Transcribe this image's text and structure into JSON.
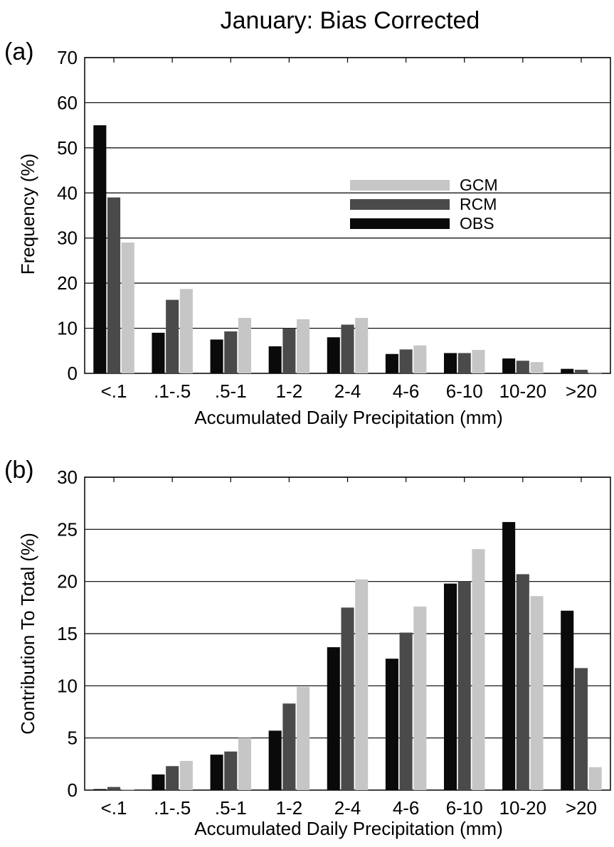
{
  "figure": {
    "title": "January: Bias Corrected"
  },
  "colors": {
    "OBS": "#0a0a0a",
    "RCM": "#4a4a4a",
    "GCM": "#c6c6c6",
    "axis": "#000000"
  },
  "chart_data": [
    {
      "type": "bar",
      "panel_label": "(a)",
      "title": "",
      "xlabel": "Accumulated Daily Precipitation (mm)",
      "ylabel": "Frequency (%)",
      "ylim": [
        0,
        70
      ],
      "yticks": [
        0,
        10,
        20,
        30,
        40,
        50,
        60,
        70
      ],
      "grid": "horizontal",
      "legend": {
        "placement": "upper-right",
        "entries": [
          "GCM",
          "RCM",
          "OBS"
        ]
      },
      "categories": [
        "<.1",
        ".1-.5",
        ".5-1",
        "1-2",
        "2-4",
        "4-6",
        "6-10",
        "10-20",
        ">20"
      ],
      "series": [
        {
          "name": "OBS",
          "values": [
            55,
            9,
            7.5,
            6,
            8,
            4.3,
            4.5,
            3.3,
            1
          ]
        },
        {
          "name": "RCM",
          "values": [
            39,
            16.3,
            9.3,
            10,
            10.8,
            5.3,
            4.5,
            2.8,
            0.8
          ]
        },
        {
          "name": "GCM",
          "values": [
            29,
            18.7,
            12.3,
            12,
            12.3,
            6.2,
            5.2,
            2.5,
            0.3
          ]
        }
      ]
    },
    {
      "type": "bar",
      "panel_label": "(b)",
      "title": "",
      "xlabel": "Accumulated Daily Precipitation (mm)",
      "ylabel": "Contribution To Total (%)",
      "ylim": [
        0,
        30
      ],
      "yticks": [
        0,
        5,
        10,
        15,
        20,
        25,
        30
      ],
      "grid": "horizontal",
      "legend": null,
      "categories": [
        "<.1",
        ".1-.5",
        ".5-1",
        "1-2",
        "2-4",
        "4-6",
        "6-10",
        "10-20",
        ">20"
      ],
      "series": [
        {
          "name": "OBS",
          "values": [
            0.1,
            1.5,
            3.4,
            5.7,
            13.7,
            12.6,
            19.8,
            25.7,
            17.2
          ]
        },
        {
          "name": "RCM",
          "values": [
            0.3,
            2.3,
            3.7,
            8.3,
            17.5,
            15.1,
            20,
            20.7,
            11.7
          ]
        },
        {
          "name": "GCM",
          "values": [
            0.1,
            2.8,
            5,
            9.9,
            20.2,
            17.6,
            23.1,
            18.6,
            2.2
          ]
        }
      ]
    }
  ]
}
